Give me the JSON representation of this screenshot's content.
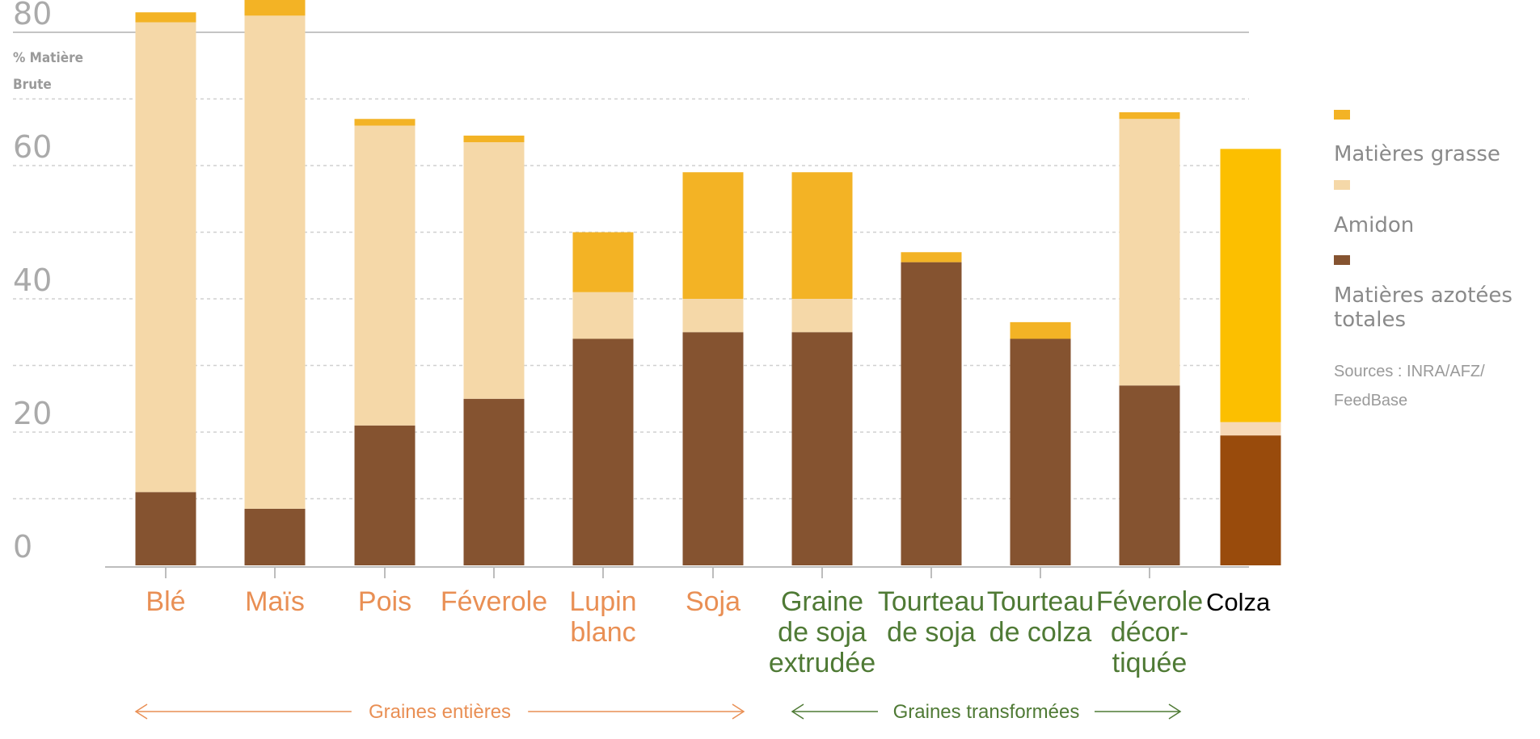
{
  "chart_data": {
    "type": "bar",
    "stacked": true,
    "title": "",
    "ylabel": "% Matière Brute",
    "ylim": [
      0,
      80
    ],
    "y_ticks": [
      0,
      20,
      40,
      60,
      80
    ],
    "grid": true,
    "categories": [
      "Blé",
      "Maïs",
      "Pois",
      "Féverole",
      "Lupin blanc",
      "Soja",
      "Graine de soja extrudée",
      "Tourteau de soja",
      "Tourteau de colza",
      "Féverole décor-tiquée",
      "Colza"
    ],
    "category_lines": [
      [
        "Blé"
      ],
      [
        "Maïs"
      ],
      [
        "Pois"
      ],
      [
        "Féverole"
      ],
      [
        "Lupin",
        "blanc"
      ],
      [
        "Soja"
      ],
      [
        "Graine",
        "de soja",
        "extrudée"
      ],
      [
        "Tourteau",
        "de soja"
      ],
      [
        "Tourteau",
        "de colza"
      ],
      [
        "Féverole",
        "décor-",
        "tiquée"
      ],
      [
        "Colza"
      ]
    ],
    "category_colors": [
      "#e98f54",
      "#e98f54",
      "#e98f54",
      "#e98f54",
      "#e98f54",
      "#e98f54",
      "#4f7a35",
      "#4f7a35",
      "#4f7a35",
      "#4f7a35",
      "#000000"
    ],
    "series": [
      {
        "name": "Matières azotées totales",
        "color": "#855330",
        "values": [
          11,
          8.5,
          21,
          25,
          34,
          35,
          35,
          45.5,
          34,
          27,
          19.5
        ]
      },
      {
        "name": "Amidon",
        "color": "#f5d8a8",
        "values": [
          70.5,
          74,
          45,
          38.5,
          7,
          5,
          5,
          0,
          0,
          40,
          2
        ]
      },
      {
        "name": "Matières grasse",
        "color": "#f3b325",
        "values": [
          1.5,
          3.5,
          1,
          1,
          9,
          19,
          19,
          1.5,
          2.5,
          1,
          41
        ]
      }
    ],
    "highlight_colors": {
      "azote": "#994b0c",
      "amidon": "#f7d8b5",
      "grasse": "#fcbf00"
    },
    "groups": [
      {
        "label": "Graines entières",
        "from": 0,
        "to": 5,
        "color": "#e98f54"
      },
      {
        "label": "Graines transformées",
        "from": 6,
        "to": 9,
        "color": "#4f7a35"
      }
    ],
    "legend": {
      "position": "right",
      "items": [
        {
          "label": "Matières grasse",
          "color": "#f3b325"
        },
        {
          "label": "Amidon",
          "color": "#f5d8a8"
        },
        {
          "label": "Matières azotées totales",
          "color": "#855330",
          "lines": [
            "Matières azotées",
            "totales"
          ]
        }
      ]
    },
    "source_lines": [
      "Sources : INRA/AFZ/",
      "FeedBase"
    ]
  }
}
